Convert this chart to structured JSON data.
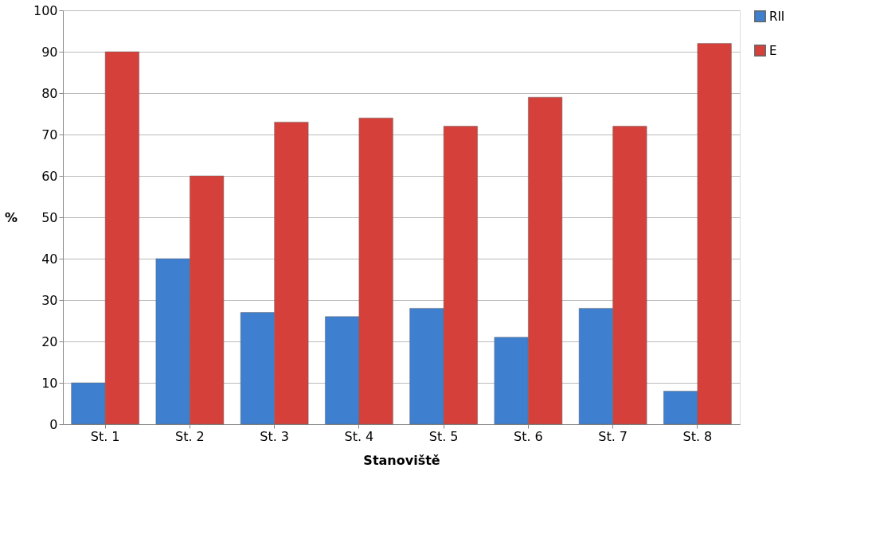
{
  "chart_data": {
    "type": "bar",
    "xlabel": "Stanoviště",
    "ylabel": "%",
    "categories": [
      "St. 1",
      "St. 2",
      "St. 3",
      "St. 4",
      "St. 5",
      "St. 6",
      "St. 7",
      "St. 8"
    ],
    "series": [
      {
        "name": "RII",
        "color": "#3f7fcf",
        "values": [
          10,
          40,
          27,
          26,
          28,
          21,
          28,
          8
        ]
      },
      {
        "name": "E",
        "color": "#d6403a",
        "values": [
          90,
          60,
          73,
          74,
          72,
          79,
          72,
          92
        ]
      }
    ],
    "ylim": [
      0,
      100
    ],
    "yticks": [
      0,
      10,
      20,
      30,
      40,
      50,
      60,
      70,
      80,
      90,
      100
    ],
    "grid": "y",
    "legend": "right"
  }
}
